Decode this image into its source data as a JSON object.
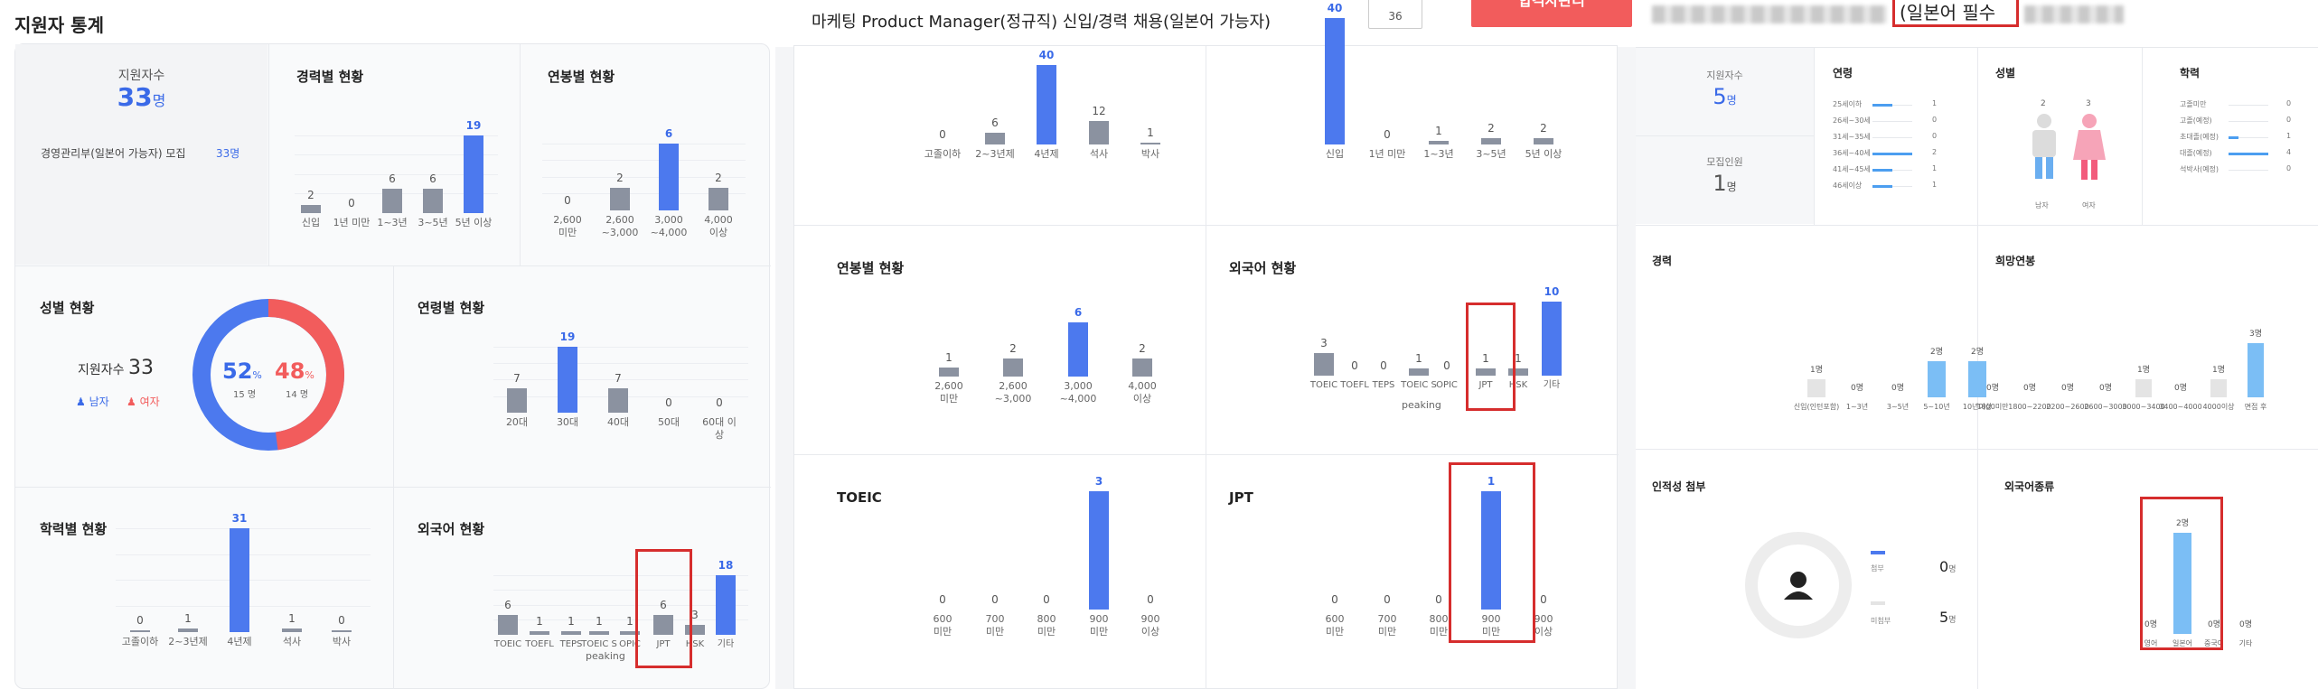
{
  "colors": {
    "blue": "#4c79ee",
    "gray": "#8b92a0",
    "red": "#f25c5c",
    "light_blue": "#7bbef5",
    "highlight": "#d62d2d"
  },
  "panel1": {
    "title": "지원자 통계",
    "applicants": {
      "label": "지원자수",
      "value": "33",
      "unit": "명",
      "job_name": "경영관리부(일본어 가능자) 모집",
      "job_count": "33명"
    },
    "career": {
      "title": "경력별 현황",
      "chart_data": {
        "type": "bar",
        "categories": [
          "신입",
          "1년 미만",
          "1~3년",
          "3~5년",
          "5년 이상"
        ],
        "values": [
          2,
          0,
          6,
          6,
          19
        ]
      }
    },
    "salary": {
      "title": "연봉별 현황",
      "chart_data": {
        "type": "bar",
        "categories": [
          "2,600\n미만",
          "2,600\n~3,000",
          "3,000\n~4,000",
          "4,000\n이상"
        ],
        "values": [
          0,
          2,
          6,
          2
        ]
      }
    },
    "gender": {
      "title": "성별 현황",
      "label": "지원자수",
      "total": "33",
      "male_label": "남자",
      "female_label": "여자",
      "male_pct": "52",
      "female_pct": "48",
      "pct_unit": "%",
      "male_count": "15 명",
      "female_count": "14 명",
      "chart_data": {
        "type": "pie",
        "categories": [
          "남자",
          "여자"
        ],
        "values": [
          52,
          48
        ]
      }
    },
    "age": {
      "title": "연령별 현황",
      "chart_data": {
        "type": "bar",
        "categories": [
          "20대",
          "30대",
          "40대",
          "50대",
          "60대 이\n상"
        ],
        "values": [
          7,
          19,
          7,
          0,
          0
        ]
      }
    },
    "education": {
      "title": "학력별 현황",
      "chart_data": {
        "type": "bar",
        "categories": [
          "고졸이하",
          "2~3년제",
          "4년제",
          "석사",
          "박사"
        ],
        "values": [
          0,
          1,
          31,
          1,
          0
        ]
      }
    },
    "language": {
      "title": "외국어 현황",
      "chart_data": {
        "type": "bar",
        "categories": [
          "TOEIC",
          "TOEFL",
          "TEPS",
          "TOEIC S",
          "OPIC",
          "JPT",
          "HSK",
          "기타"
        ],
        "values": [
          6,
          1,
          1,
          1,
          1,
          6,
          3,
          18
        ]
      },
      "xlabels": [
        "TOEIC",
        "TOEFL",
        "TEPS",
        "TOEIC S",
        "OPIC",
        "JPT",
        "HSK",
        "기타"
      ],
      "sublabel": "peaking"
    }
  },
  "panel2": {
    "title": "마케팅 Product Manager(정규직) 신입/경력 채용(일본어 가능자)",
    "count_box": "36",
    "button": "합격자관리",
    "education": {
      "chart_data": {
        "type": "bar",
        "categories": [
          "고졸이하",
          "2~3년제",
          "4년제",
          "석사",
          "박사"
        ],
        "values": [
          0,
          6,
          40,
          12,
          1
        ]
      }
    },
    "career": {
      "chart_data": {
        "type": "bar",
        "categories": [
          "신입",
          "1년 미만",
          "1~3년",
          "3~5년",
          "5년 이상"
        ],
        "values": [
          40,
          0,
          1,
          2,
          2
        ]
      }
    },
    "salary": {
      "title": "연봉별 현황",
      "chart_data": {
        "type": "bar",
        "categories": [
          "2,600\n미만",
          "2,600\n~3,000",
          "3,000\n~4,000",
          "4,000\n이상"
        ],
        "values": [
          1,
          2,
          6,
          2
        ]
      }
    },
    "language": {
      "title": "외국어 현황",
      "chart_data": {
        "type": "bar",
        "categories": [
          "TOEIC",
          "TOEFL",
          "TEPS",
          "TOEIC S",
          "OPIC",
          "JPT",
          "HSK",
          "기타"
        ],
        "values": [
          3,
          0,
          0,
          1,
          0,
          1,
          1,
          10
        ]
      },
      "xlabels": [
        "TOEIC",
        "TOEFL",
        "TEPS",
        "TOEIC S",
        "OPIC",
        "JPT",
        "HSK",
        "기타"
      ],
      "sublabel": "peaking"
    },
    "toeic": {
      "title": "TOEIC",
      "chart_data": {
        "type": "bar",
        "categories": [
          "600\n미만",
          "700\n미만",
          "800\n미만",
          "900\n미만",
          "900\n이상"
        ],
        "values": [
          0,
          0,
          0,
          3,
          0
        ]
      }
    },
    "jpt": {
      "title": "JPT",
      "chart_data": {
        "type": "bar",
        "categories": [
          "600\n미만",
          "700\n미만",
          "800\n미만",
          "900\n미만",
          "900\n이상"
        ],
        "values": [
          0,
          0,
          0,
          1,
          0
        ]
      }
    }
  },
  "panel3": {
    "title_suffix": "(일본어 필수",
    "applicants": {
      "label": "지원자수",
      "value": "5",
      "unit": "명"
    },
    "recruit": {
      "label": "모집인원",
      "value": "1",
      "unit": "명"
    },
    "age": {
      "title": "연령",
      "rows": [
        {
          "label": "25세이하",
          "value": "1",
          "level": 0.5
        },
        {
          "label": "26세~30세",
          "value": "0",
          "level": 0
        },
        {
          "label": "31세~35세",
          "value": "0",
          "level": 0
        },
        {
          "label": "36세~40세",
          "value": "2",
          "level": 1
        },
        {
          "label": "41세~45세",
          "value": "1",
          "level": 0.5
        },
        {
          "label": "46세이상",
          "value": "1",
          "level": 0.5
        }
      ]
    },
    "gender": {
      "title": "성별",
      "male_count": "2",
      "female_count": "3",
      "male_label": "남자",
      "female_label": "여자"
    },
    "education": {
      "title": "학력",
      "rows": [
        {
          "label": "고졸미만",
          "value": "0",
          "level": 0
        },
        {
          "label": "고졸(예정)",
          "value": "0",
          "level": 0
        },
        {
          "label": "초대졸(예정)",
          "value": "1",
          "level": 0.25
        },
        {
          "label": "대졸(예정)",
          "value": "4",
          "level": 1
        },
        {
          "label": "석박사(예정)",
          "value": "0",
          "level": 0
        }
      ]
    },
    "career": {
      "title": "경력",
      "chart_data": {
        "type": "bar",
        "categories": [
          "신입(인턴포함)",
          "1~3년",
          "3~5년",
          "5~10년",
          "10년이상"
        ],
        "values": [
          1,
          0,
          0,
          2,
          2
        ]
      },
      "value_labels": [
        "1명",
        "0명",
        "0명",
        "2명",
        "2명"
      ]
    },
    "salary": {
      "title": "희망연봉",
      "chart_data": {
        "type": "bar",
        "categories": [
          "1800미만",
          "1800~2200",
          "2200~2600",
          "2600~3000",
          "3000~3400",
          "3400~4000",
          "4000이상",
          "면접 후"
        ],
        "values": [
          0,
          0,
          0,
          0,
          1,
          0,
          1,
          3
        ]
      },
      "value_labels": [
        "0명",
        "0명",
        "0명",
        "0명",
        "1명",
        "0명",
        "1명",
        "3명"
      ]
    },
    "photo": {
      "title": "인적성 첨부",
      "attached_label": "첨부",
      "attached_value": "0",
      "not_attached_label": "미첨부",
      "not_attached_value": "5",
      "unit": "명"
    },
    "language": {
      "title": "외국어종류",
      "chart_data": {
        "type": "bar",
        "categories": [
          "영어",
          "일본어",
          "중국어",
          "기타"
        ],
        "values": [
          0,
          2,
          0,
          0
        ]
      },
      "value_labels": [
        "0명",
        "2명",
        "0명",
        "0명"
      ]
    }
  }
}
